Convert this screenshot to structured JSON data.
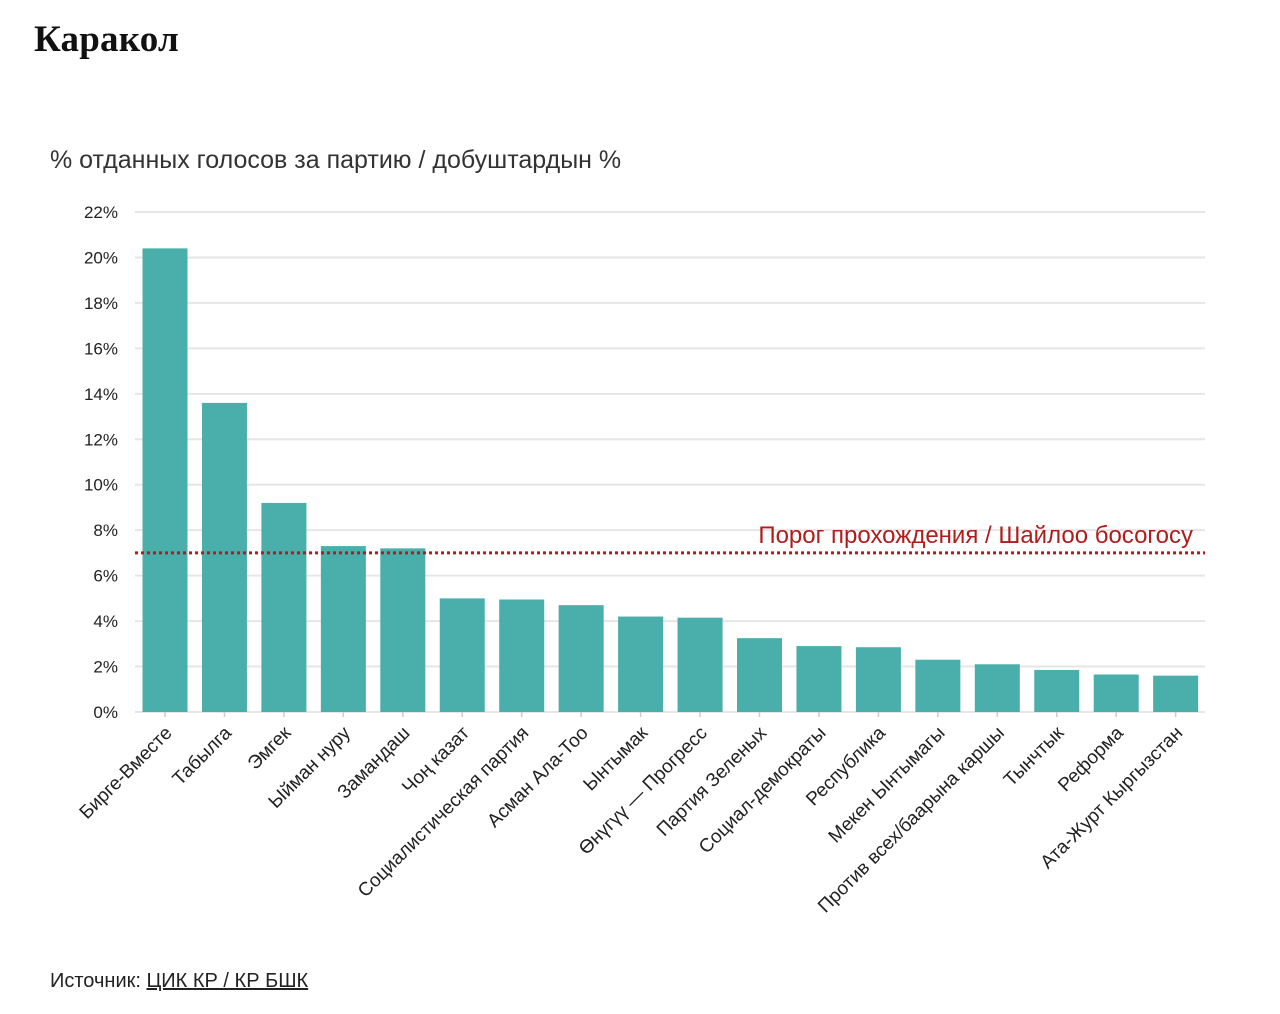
{
  "page": {
    "title": "Каракол"
  },
  "source": {
    "label": "Источник:",
    "link_text": "ЦИК КР / КР БШК"
  },
  "chart_data": {
    "type": "bar",
    "title": "% отданных голосов за партию / добуштардын %",
    "xlabel": "",
    "ylabel": "",
    "ylim": [
      0,
      22
    ],
    "yticks": [
      0,
      2,
      4,
      6,
      8,
      10,
      12,
      14,
      16,
      18,
      20,
      22
    ],
    "ytick_suffix": "%",
    "grid": true,
    "bar_color": "#4aaeaa",
    "categories": [
      "Бирге-Вместе",
      "Табылга",
      "Эмгек",
      "Ыйман нуру",
      "Замандаш",
      "Чоң казат",
      "Социалистическая партия",
      "Асман Ала-Тоо",
      "Ынтымак",
      "Өнүгүү — Прогресс",
      "Партия Зеленых",
      "Социал-демократы",
      "Республика",
      "Мекен Ынтымагы",
      "Против всех/баарына каршы",
      "Тынчтык",
      "Реформа",
      "Ата-Журт Кыргызстан"
    ],
    "values": [
      20.4,
      13.6,
      9.2,
      7.3,
      7.2,
      5.0,
      4.95,
      4.7,
      4.2,
      4.15,
      3.25,
      2.9,
      2.85,
      2.3,
      2.1,
      1.85,
      1.65,
      1.6
    ],
    "threshold": {
      "value": 7,
      "label": "Порог прохождения / Шайлоо босогосу",
      "color": "#b01c1c"
    }
  }
}
